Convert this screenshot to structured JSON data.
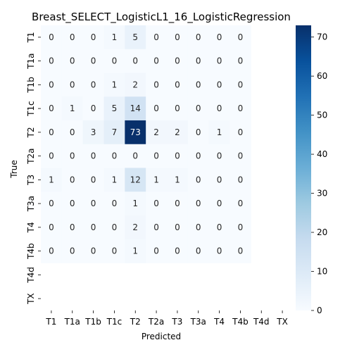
{
  "chart_data": {
    "type": "heatmap",
    "title": "Breast_SELECT_LogisticL1_16_LogisticRegression",
    "xlabel": "Predicted",
    "ylabel": "True",
    "x_categories": [
      "T1",
      "T1a",
      "T1b",
      "T1c",
      "T2",
      "T2a",
      "T3",
      "T3a",
      "T4",
      "T4b",
      "T4d",
      "TX"
    ],
    "y_categories": [
      "T1",
      "T1a",
      "T1b",
      "T1c",
      "T2",
      "T2a",
      "T3",
      "T3a",
      "T4",
      "T4b",
      "T4d",
      "TX"
    ],
    "matrix": [
      [
        0,
        0,
        0,
        1,
        5,
        0,
        0,
        0,
        0,
        0,
        null,
        null
      ],
      [
        0,
        0,
        0,
        0,
        0,
        0,
        0,
        0,
        0,
        0,
        null,
        null
      ],
      [
        0,
        0,
        0,
        1,
        2,
        0,
        0,
        0,
        0,
        0,
        null,
        null
      ],
      [
        0,
        1,
        0,
        5,
        14,
        0,
        0,
        0,
        0,
        0,
        null,
        null
      ],
      [
        0,
        0,
        3,
        7,
        73,
        2,
        2,
        0,
        1,
        0,
        null,
        null
      ],
      [
        0,
        0,
        0,
        0,
        0,
        0,
        0,
        0,
        0,
        0,
        null,
        null
      ],
      [
        1,
        0,
        0,
        1,
        12,
        1,
        1,
        0,
        0,
        0,
        null,
        null
      ],
      [
        0,
        0,
        0,
        0,
        1,
        0,
        0,
        0,
        0,
        0,
        null,
        null
      ],
      [
        0,
        0,
        0,
        0,
        2,
        0,
        0,
        0,
        0,
        0,
        null,
        null
      ],
      [
        0,
        0,
        0,
        0,
        1,
        0,
        0,
        0,
        0,
        0,
        null,
        null
      ],
      [
        null,
        null,
        null,
        null,
        null,
        null,
        null,
        null,
        null,
        null,
        null,
        null
      ],
      [
        null,
        null,
        null,
        null,
        null,
        null,
        null,
        null,
        null,
        null,
        null,
        null
      ]
    ],
    "colorbar": {
      "min": 0,
      "max": 73,
      "ticks": [
        "0",
        "10",
        "20",
        "30",
        "40",
        "50",
        "60",
        "70"
      ],
      "colormap": "Blues"
    }
  }
}
